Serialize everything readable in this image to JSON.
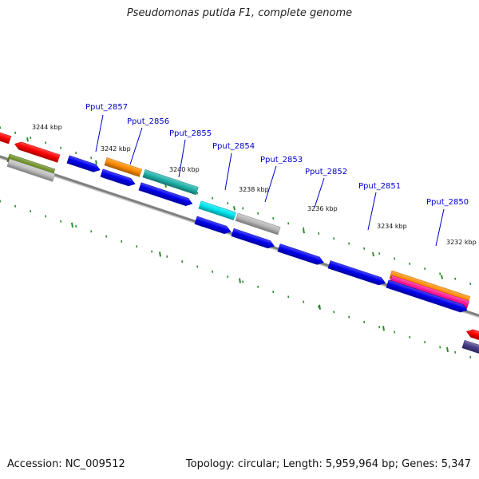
{
  "title": "Pseudomonas putida F1, complete genome",
  "footer": {
    "accession": "Accession: NC_009512",
    "summary": "Topology: circular; Length: 5,959,964 bp; Genes: 5,347"
  },
  "colors": {
    "backbone": "#808080",
    "tick": "#2e8b2e",
    "label_line": "#0000cc",
    "label_text": "#0000cc"
  },
  "ticks": [
    {
      "label": "3244 kbp"
    },
    {
      "label": "3242 kbp"
    },
    {
      "label": "3240 kbp"
    },
    {
      "label": "3238 kbp"
    },
    {
      "label": "3236 kbp"
    },
    {
      "label": "3234 kbp"
    },
    {
      "label": "3232 kbp"
    }
  ],
  "gene_labels": [
    {
      "name": "Pput_2857"
    },
    {
      "name": "Pput_2856"
    },
    {
      "name": "Pput_2855"
    },
    {
      "name": "Pput_2854"
    },
    {
      "name": "Pput_2853"
    },
    {
      "name": "Pput_2852"
    },
    {
      "name": "Pput_2851"
    },
    {
      "name": "Pput_2850"
    }
  ],
  "features": [
    {
      "color": "#ff0000",
      "direction": "reverse"
    },
    {
      "color": "#ff0000",
      "direction": "reverse"
    },
    {
      "color": "#6b8e23",
      "direction": "none"
    },
    {
      "color": "#c0c0c0",
      "direction": "none"
    },
    {
      "color": "#0000ee",
      "direction": "forward"
    },
    {
      "color": "#ff8c00",
      "direction": "none"
    },
    {
      "color": "#0000ee",
      "direction": "forward"
    },
    {
      "color": "#20b2aa",
      "direction": "none"
    },
    {
      "color": "#00e5ee",
      "direction": "none"
    },
    {
      "color": "#b8b8b8",
      "direction": "none"
    },
    {
      "color": "#0000ee",
      "direction": "forward"
    },
    {
      "color": "#0000ee",
      "direction": "forward"
    },
    {
      "color": "#0000ee",
      "direction": "forward"
    },
    {
      "color": "#0000ee",
      "direction": "forward"
    },
    {
      "color": "#0000ee",
      "direction": "forward"
    },
    {
      "color": "#ff8c00",
      "direction": "none"
    },
    {
      "color": "#ff1493",
      "direction": "none"
    },
    {
      "color": "#0000ee",
      "direction": "forward"
    },
    {
      "color": "#ff0000",
      "direction": "reverse"
    },
    {
      "color": "#483d8b",
      "direction": "none"
    }
  ]
}
